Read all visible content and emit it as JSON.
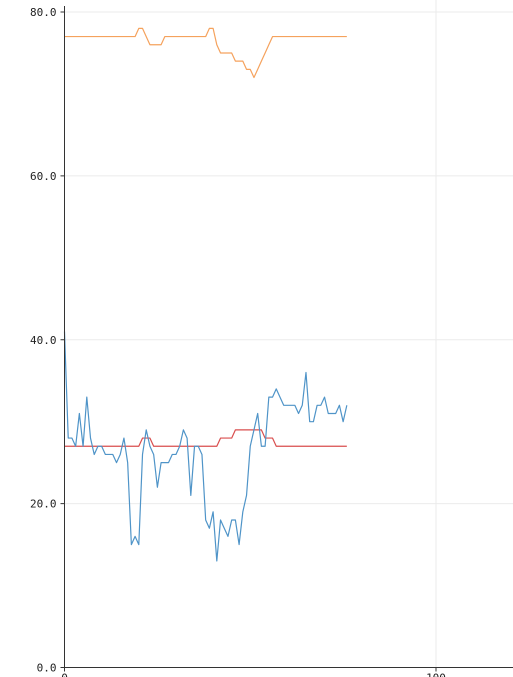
{
  "chart_data": {
    "type": "line",
    "title": "",
    "xlabel": "",
    "ylabel": "",
    "xlim": [
      0,
      122
    ],
    "ylim": [
      0,
      82
    ],
    "grid": true,
    "legend": "none",
    "x_ticks": [
      {
        "value": 0,
        "label": "0"
      },
      {
        "value": 100,
        "label": "100"
      }
    ],
    "y_ticks": [
      {
        "value": 0,
        "label": "0.0"
      },
      {
        "value": 20,
        "label": "20.0"
      },
      {
        "value": 40,
        "label": "40.0"
      },
      {
        "value": 60,
        "label": "60.0"
      },
      {
        "value": 80,
        "label": "80.0"
      }
    ],
    "series": [
      {
        "color": "#f5a25d",
        "x": [
          0,
          19,
          20,
          21,
          22,
          23,
          24,
          25,
          26,
          27,
          38,
          39,
          40,
          41,
          42,
          43,
          44,
          45,
          46,
          47,
          48,
          49,
          50,
          51,
          52,
          53,
          54,
          55,
          56,
          57,
          58,
          59,
          76
        ],
        "y": [
          77,
          77,
          78,
          78,
          77,
          76,
          76,
          76,
          76,
          77,
          77,
          78,
          78,
          76,
          75,
          75,
          75,
          75,
          74,
          74,
          74,
          73,
          73,
          72,
          73,
          74,
          75,
          76,
          77,
          77,
          77,
          77,
          77
        ]
      },
      {
        "color": "#d94e4e",
        "x": [
          0,
          20,
          21,
          23,
          24,
          41,
          42,
          45,
          46,
          53,
          54,
          56,
          57,
          76
        ],
        "y": [
          27,
          27,
          28,
          28,
          27,
          27,
          28,
          28,
          29,
          29,
          28,
          28,
          27,
          27
        ]
      },
      {
        "color": "#4f94c8",
        "x": [
          0,
          1,
          2,
          3,
          4,
          5,
          6,
          7,
          8,
          9,
          10,
          11,
          12,
          13,
          14,
          15,
          16,
          17,
          18,
          19,
          20,
          21,
          22,
          23,
          24,
          25,
          26,
          27,
          28,
          29,
          30,
          31,
          32,
          33,
          34,
          35,
          36,
          37,
          38,
          39,
          40,
          41,
          42,
          43,
          44,
          45,
          46,
          47,
          48,
          49,
          50,
          51,
          52,
          53,
          54,
          55,
          56,
          57,
          58,
          59,
          60,
          61,
          62,
          63,
          64,
          65,
          66,
          67,
          68,
          69,
          70,
          71,
          72,
          73,
          74,
          75,
          76
        ],
        "y": [
          41,
          28,
          28,
          27,
          31,
          27,
          33,
          28,
          26,
          27,
          27,
          26,
          26,
          26,
          25,
          26,
          28,
          25,
          15,
          16,
          15,
          26,
          29,
          27,
          26,
          22,
          25,
          25,
          25,
          26,
          26,
          27,
          29,
          28,
          21,
          27,
          27,
          26,
          18,
          17,
          19,
          13,
          18,
          17,
          16,
          18,
          18,
          15,
          19,
          21,
          27,
          29,
          31,
          27,
          27,
          33,
          33,
          34,
          33,
          32,
          32,
          32,
          32,
          31,
          32,
          36,
          30,
          30,
          32,
          32,
          33,
          31,
          31,
          31,
          32,
          30,
          32
        ]
      }
    ]
  }
}
